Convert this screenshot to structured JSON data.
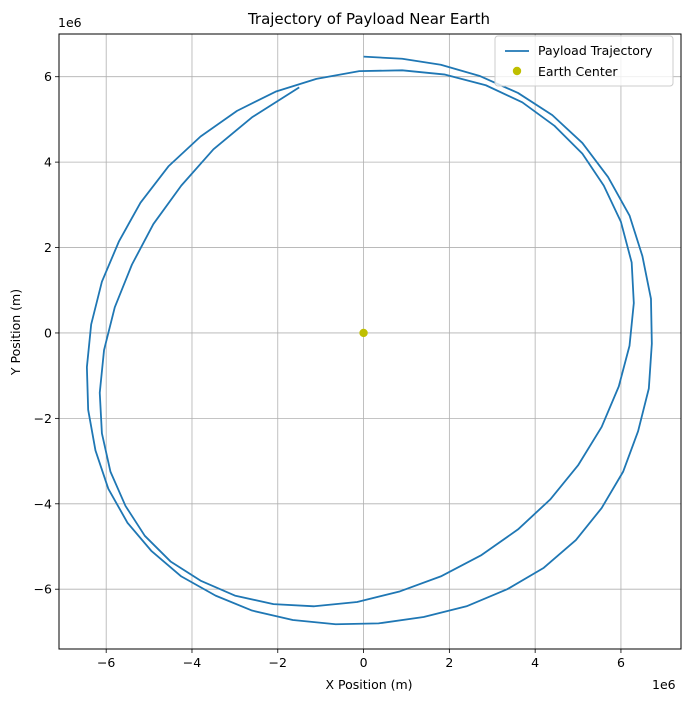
{
  "chart_data": {
    "type": "line",
    "title": "Trajectory of Payload Near Earth",
    "xlabel": "X Position (m)",
    "ylabel": "Y Position (m)",
    "x_offset_label": "1e6",
    "y_offset_label": "1e6",
    "xlim": [
      -7.1,
      7.4
    ],
    "ylim": [
      -7.4,
      7.0
    ],
    "xticks": [
      -6,
      -4,
      -2,
      0,
      2,
      4,
      6
    ],
    "yticks": [
      -6,
      -4,
      -2,
      0,
      2,
      4,
      6
    ],
    "xtick_labels": [
      "−6",
      "−4",
      "−2",
      "0",
      "2",
      "4",
      "6"
    ],
    "ytick_labels": [
      "−6",
      "−4",
      "−2",
      "0",
      "2",
      "4",
      "6"
    ],
    "grid": true,
    "legend_position": "top-right",
    "series": [
      {
        "name": "Payload Trajectory",
        "kind": "line",
        "color": "#1f77b4",
        "x": [
          0.0,
          0.9,
          1.8,
          2.7,
          3.6,
          4.4,
          5.1,
          5.7,
          6.2,
          6.5,
          6.7,
          6.72,
          6.65,
          6.4,
          6.05,
          5.55,
          4.95,
          4.2,
          3.35,
          2.4,
          1.4,
          0.35,
          -0.65,
          -1.65,
          -2.6,
          -3.45,
          -4.25,
          -4.95,
          -5.5,
          -5.95,
          -6.25,
          -6.42,
          -6.45,
          -6.35,
          -6.1,
          -5.7,
          -5.2,
          -4.55,
          -3.8,
          -2.95,
          -2.05,
          -1.1,
          -0.1,
          0.9,
          1.9,
          2.85,
          3.7,
          4.45,
          5.1,
          5.6,
          6.0,
          6.25,
          6.3,
          6.2,
          5.95,
          5.55,
          5.0,
          4.35,
          3.6,
          2.75,
          1.8,
          0.85,
          -0.15,
          -1.15,
          -2.1,
          -3.0,
          -3.8,
          -4.5,
          -5.1,
          -5.55,
          -5.9,
          -6.1,
          -6.15,
          -6.05,
          -5.8,
          -5.4,
          -4.9,
          -4.25,
          -3.5,
          -2.6,
          -1.5
        ],
        "y": [
          6.47,
          6.42,
          6.28,
          6.02,
          5.62,
          5.1,
          4.45,
          3.65,
          2.75,
          1.8,
          0.8,
          -0.25,
          -1.3,
          -2.3,
          -3.25,
          -4.1,
          -4.85,
          -5.5,
          -6.0,
          -6.4,
          -6.65,
          -6.8,
          -6.82,
          -6.72,
          -6.5,
          -6.15,
          -5.7,
          -5.1,
          -4.45,
          -3.65,
          -2.75,
          -1.8,
          -0.8,
          0.2,
          1.2,
          2.15,
          3.05,
          3.9,
          4.6,
          5.2,
          5.65,
          5.95,
          6.13,
          6.15,
          6.05,
          5.8,
          5.4,
          4.85,
          4.2,
          3.45,
          2.6,
          1.65,
          0.7,
          -0.3,
          -1.25,
          -2.2,
          -3.1,
          -3.9,
          -4.6,
          -5.2,
          -5.7,
          -6.05,
          -6.3,
          -6.4,
          -6.35,
          -6.15,
          -5.8,
          -5.35,
          -4.75,
          -4.05,
          -3.25,
          -2.35,
          -1.4,
          -0.4,
          0.6,
          1.6,
          2.55,
          3.45,
          4.3,
          5.05,
          5.75
        ]
      },
      {
        "name": "Earth Center",
        "kind": "point",
        "color": "#bfbf00",
        "x": [
          0
        ],
        "y": [
          0
        ]
      }
    ]
  }
}
